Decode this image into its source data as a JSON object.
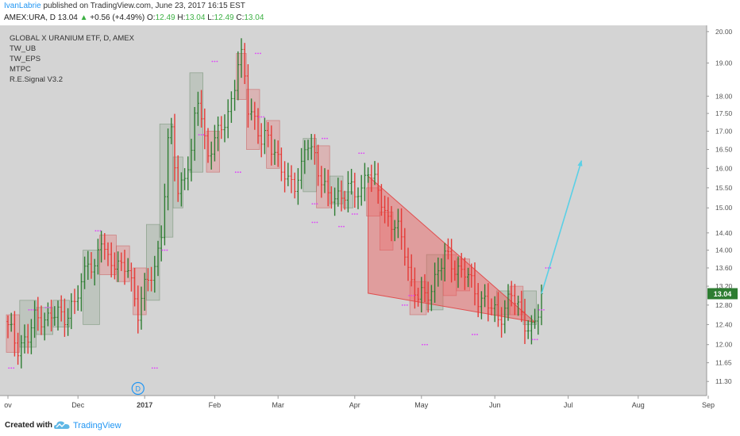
{
  "header": {
    "author": "IvanLabrie",
    "published": "published on TradingView.com, June 23, 2017 16:15 EST",
    "symbol": "AMEX:URA, D",
    "last": "13.04",
    "change": "+0.56 (+4.49%)",
    "o_label": "O:",
    "o_value": "12.49",
    "h_label": "H:",
    "h_value": "13.04",
    "l_label": "L:",
    "l_value": "12.49",
    "c_label": "C:",
    "c_value": "13.04",
    "up_arrow": "▲"
  },
  "legend": [
    "GLOBAL X URANIUM ETF, D, AMEX",
    "TW_UB",
    "TW_EPS",
    "MTPC",
    "R.E.Signal V3.2"
  ],
  "price_badge": "13.04",
  "dividend_marker": "D",
  "footer": {
    "created_with": "Created with",
    "brand": "TradingView"
  },
  "colors": {
    "bg": "#d4d4d4",
    "up": "#2e7d32",
    "down": "#e53935",
    "triangle": "#f08080",
    "projection": "#5ad0e6",
    "badge": "#2e7d32",
    "marker": "#e040fb"
  },
  "chart_data": {
    "type": "candlestick",
    "y_scale": "log",
    "ylim": [
      11.1,
      20.1
    ],
    "y_ticks": [
      11.3,
      11.65,
      12.0,
      12.4,
      12.8,
      13.2,
      13.6,
      14.0,
      14.4,
      15.0,
      15.5,
      16.0,
      16.5,
      17.0,
      17.5,
      18.0,
      19.0,
      20.0
    ],
    "x_ticks": [
      "ov",
      "Dec",
      "2017",
      "Feb",
      "Mar",
      "Apr",
      "May",
      "Jun",
      "Jul",
      "Aug",
      "Sep"
    ],
    "x_tick_bar_index": [
      0,
      21,
      41,
      62,
      81,
      104,
      124,
      146,
      168,
      189,
      210
    ],
    "last_price": 13.04,
    "boxes": [
      {
        "from": 0,
        "to": 3,
        "low": 11.85,
        "high": 12.6,
        "dir": "down"
      },
      {
        "from": 4,
        "to": 8,
        "low": 11.95,
        "high": 12.9,
        "dir": "up"
      },
      {
        "from": 9,
        "to": 13,
        "low": 12.2,
        "high": 12.75,
        "dir": "up"
      },
      {
        "from": 14,
        "to": 18,
        "low": 12.35,
        "high": 12.9,
        "dir": "up"
      },
      {
        "from": 23,
        "to": 27,
        "low": 12.4,
        "high": 14.0,
        "dir": "up"
      },
      {
        "from": 28,
        "to": 32,
        "low": 13.45,
        "high": 14.35,
        "dir": "down"
      },
      {
        "from": 33,
        "to": 36,
        "low": 13.3,
        "high": 14.1,
        "dir": "down"
      },
      {
        "from": 38,
        "to": 41,
        "low": 12.6,
        "high": 13.6,
        "dir": "down"
      },
      {
        "from": 42,
        "to": 45,
        "low": 12.9,
        "high": 14.6,
        "dir": "up"
      },
      {
        "from": 46,
        "to": 49,
        "low": 14.3,
        "high": 17.2,
        "dir": "up"
      },
      {
        "from": 50,
        "to": 52,
        "low": 15.0,
        "high": 16.3,
        "dir": "up"
      },
      {
        "from": 55,
        "to": 58,
        "low": 15.9,
        "high": 18.7,
        "dir": "up"
      },
      {
        "from": 60,
        "to": 63,
        "low": 15.9,
        "high": 17.0,
        "dir": "down"
      },
      {
        "from": 69,
        "to": 71,
        "low": 17.9,
        "high": 19.3,
        "dir": "down"
      },
      {
        "from": 72,
        "to": 75,
        "low": 16.5,
        "high": 18.2,
        "dir": "down"
      },
      {
        "from": 78,
        "to": 81,
        "low": 16.0,
        "high": 17.3,
        "dir": "down"
      },
      {
        "from": 89,
        "to": 92,
        "low": 15.4,
        "high": 16.8,
        "dir": "up"
      },
      {
        "from": 93,
        "to": 96,
        "low": 15.0,
        "high": 16.6,
        "dir": "down"
      },
      {
        "from": 97,
        "to": 100,
        "low": 15.1,
        "high": 15.8,
        "dir": "up"
      },
      {
        "from": 101,
        "to": 103,
        "low": 15.0,
        "high": 15.4,
        "dir": "up"
      },
      {
        "from": 108,
        "to": 111,
        "low": 14.8,
        "high": 15.5,
        "dir": "down"
      },
      {
        "from": 112,
        "to": 115,
        "low": 14.0,
        "high": 14.9,
        "dir": "down"
      },
      {
        "from": 121,
        "to": 125,
        "low": 12.6,
        "high": 13.3,
        "dir": "down"
      },
      {
        "from": 126,
        "to": 130,
        "low": 12.7,
        "high": 13.9,
        "dir": "up"
      },
      {
        "from": 131,
        "to": 134,
        "low": 13.0,
        "high": 13.9,
        "dir": "down"
      },
      {
        "from": 135,
        "to": 138,
        "low": 13.1,
        "high": 13.8,
        "dir": "down"
      },
      {
        "from": 147,
        "to": 150,
        "low": 12.6,
        "high": 13.1,
        "dir": "up"
      },
      {
        "from": 151,
        "to": 154,
        "low": 12.6,
        "high": 13.2,
        "dir": "down"
      },
      {
        "from": 155,
        "to": 158,
        "low": 12.4,
        "high": 13.1,
        "dir": "up"
      }
    ],
    "triangle": [
      {
        "bar": 108,
        "price": 15.8
      },
      {
        "bar": 108,
        "price": 13.05
      },
      {
        "bar": 158,
        "price": 12.45
      }
    ],
    "projection": [
      {
        "bar": 160,
        "price": 13.04
      },
      {
        "bar": 172,
        "price": 16.2
      }
    ],
    "dividend_bar": 39,
    "anchors": [
      [
        0,
        12.3
      ],
      [
        3,
        12.0
      ],
      [
        6,
        12.1
      ],
      [
        8,
        12.5
      ],
      [
        10,
        12.6
      ],
      [
        12,
        12.5
      ],
      [
        15,
        12.6
      ],
      [
        18,
        12.65
      ],
      [
        20,
        12.8
      ],
      [
        22,
        13.2
      ],
      [
        24,
        13.9
      ],
      [
        26,
        13.5
      ],
      [
        28,
        14.2
      ],
      [
        30,
        13.8
      ],
      [
        32,
        13.8
      ],
      [
        34,
        13.5
      ],
      [
        36,
        13.6
      ],
      [
        38,
        13.0
      ],
      [
        39,
        12.7
      ],
      [
        40,
        12.9
      ],
      [
        42,
        13.3
      ],
      [
        44,
        13.6
      ],
      [
        46,
        14.5
      ],
      [
        47,
        15.3
      ],
      [
        48,
        16.5
      ],
      [
        49,
        17.0
      ],
      [
        50,
        16.2
      ],
      [
        51,
        15.4
      ],
      [
        53,
        15.9
      ],
      [
        55,
        16.2
      ],
      [
        56,
        17.3
      ],
      [
        57,
        18.0
      ],
      [
        58,
        17.5
      ],
      [
        59,
        16.8
      ],
      [
        60,
        16.4
      ],
      [
        62,
        16.6
      ],
      [
        64,
        17.2
      ],
      [
        66,
        17.5
      ],
      [
        68,
        18.3
      ],
      [
        69,
        18.8
      ],
      [
        70,
        19.1
      ],
      [
        71,
        18.7
      ],
      [
        72,
        17.8
      ],
      [
        74,
        17.3
      ],
      [
        76,
        16.6
      ],
      [
        78,
        16.9
      ],
      [
        80,
        16.5
      ],
      [
        81,
        16.2
      ],
      [
        82,
        15.9
      ],
      [
        84,
        15.6
      ],
      [
        86,
        15.7
      ],
      [
        88,
        16.0
      ],
      [
        89,
        16.4
      ],
      [
        90,
        16.6
      ],
      [
        92,
        16.3
      ],
      [
        94,
        15.8
      ],
      [
        96,
        15.2
      ],
      [
        98,
        15.2
      ],
      [
        100,
        15.4
      ],
      [
        102,
        15.5
      ],
      [
        104,
        15.3
      ],
      [
        106,
        15.4
      ],
      [
        107,
        15.9
      ],
      [
        108,
        16.1
      ],
      [
        109,
        15.7
      ],
      [
        111,
        15.4
      ],
      [
        113,
        14.9
      ],
      [
        115,
        14.7
      ],
      [
        117,
        14.4
      ],
      [
        119,
        14.0
      ],
      [
        121,
        13.3
      ],
      [
        123,
        13.0
      ],
      [
        125,
        12.9
      ],
      [
        127,
        13.2
      ],
      [
        129,
        13.6
      ],
      [
        131,
        13.8
      ],
      [
        133,
        13.7
      ],
      [
        135,
        13.6
      ],
      [
        137,
        13.5
      ],
      [
        139,
        13.2
      ],
      [
        141,
        13.0
      ],
      [
        143,
        12.9
      ],
      [
        145,
        12.7
      ],
      [
        147,
        12.5
      ],
      [
        149,
        12.8
      ],
      [
        151,
        13.0
      ],
      [
        153,
        12.7
      ],
      [
        155,
        12.5
      ],
      [
        157,
        12.3
      ],
      [
        158,
        12.4
      ],
      [
        159,
        12.6
      ],
      [
        160,
        13.04
      ]
    ],
    "signals": [
      [
        1,
        11.55
      ],
      [
        7,
        12.7
      ],
      [
        12,
        12.75
      ],
      [
        27,
        14.45
      ],
      [
        44,
        11.55
      ],
      [
        47,
        14.0
      ],
      [
        62,
        19.05
      ],
      [
        75,
        19.3
      ],
      [
        69,
        15.9
      ],
      [
        58,
        16.9
      ],
      [
        76,
        17.4
      ],
      [
        95,
        16.8
      ],
      [
        106,
        16.4
      ],
      [
        92,
        15.1
      ],
      [
        92,
        14.65
      ],
      [
        100,
        14.55
      ],
      [
        104,
        14.85
      ],
      [
        119,
        12.8
      ],
      [
        121,
        13.0
      ],
      [
        125,
        12.0
      ],
      [
        140,
        12.2
      ],
      [
        158,
        12.1
      ],
      [
        162,
        13.6
      ],
      [
        160,
        12.7
      ]
    ]
  }
}
